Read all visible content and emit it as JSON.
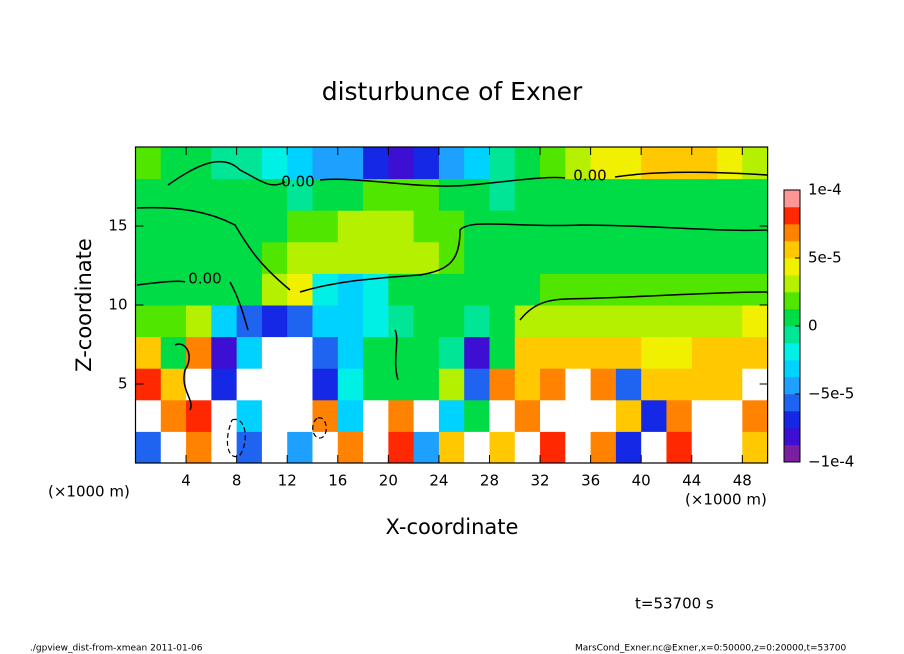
{
  "chart_data": {
    "type": "contour",
    "title": "disturbunce of Exner",
    "x_label": "X-coordinate",
    "y_label": "Z-coordinate",
    "x_unit": "(×1000 m)",
    "y_unit": "(×1000 m)",
    "time_label": "t=53700 s",
    "footer_left": "./gpview_dist-from-xmean  2011-01-06",
    "footer_right": "MarsCond_Exner.nc@Exner,x=0:50000,z=0:20000,t=53700",
    "contour_labels": [
      "0.00",
      "0.00",
      "0.00"
    ],
    "xlim": [
      0,
      50
    ],
    "ylim": [
      0,
      20
    ],
    "xticks": [
      4,
      8,
      12,
      16,
      20,
      24,
      28,
      32,
      36,
      40,
      44,
      48
    ],
    "yticks": [
      5,
      10,
      15
    ],
    "clim": [
      -0.0001,
      0.0001
    ],
    "cticks": [
      {
        "value": 0.0001,
        "label": "1e-4"
      },
      {
        "value": 5e-05,
        "label": "5e-5"
      },
      0,
      {
        "value": -5e-05,
        "label": "−5e-5"
      },
      {
        "value": -0.0001,
        "label": "−1e-4"
      }
    ],
    "colormap": [
      "#7a1fa2",
      "#3c0fd2",
      "#1428e6",
      "#1e64f0",
      "#1ea0ff",
      "#00d2ff",
      "#00f0e6",
      "#00e696",
      "#00dc46",
      "#50e600",
      "#b4f000",
      "#f0f000",
      "#ffc800",
      "#ff8200",
      "#ff2800",
      "#ff9696"
    ],
    "out_of_range_color": "#ffffff",
    "x": [
      1,
      3,
      5,
      7,
      9,
      11,
      13,
      15,
      17,
      19,
      21,
      23,
      25,
      27,
      29,
      31,
      33,
      35,
      37,
      39,
      41,
      43,
      45,
      47,
      49
    ],
    "y": [
      1,
      3,
      5,
      7,
      9,
      11,
      13,
      15,
      17,
      19
    ],
    "z": [
      [
        -6e-05,
        0.00012,
        7e-05,
        0.00012,
        -6e-05,
        0.00012,
        -5e-05,
        0.00012,
        7e-05,
        0.00012,
        8e-05,
        -4e-05,
        5e-05,
        0.00012,
        6e-05,
        0.00012,
        8e-05,
        0.00012,
        7e-05,
        -7e-05,
        0.00012,
        8e-05,
        0.00012,
        0.00012,
        6e-05
      ],
      [
        0.00012,
        7e-05,
        8e-05,
        0.00012,
        -3e-05,
        0.00012,
        0.00012,
        7e-05,
        -3e-05,
        0.00012,
        7e-05,
        0.00012,
        -3e-05,
        0,
        0.00012,
        7e-05,
        0.00012,
        0.00012,
        0.00012,
        6e-05,
        -7e-05,
        7e-05,
        0.00012,
        0.00012,
        7e-05
      ],
      [
        8e-05,
        6e-05,
        0.00012,
        -7e-05,
        0.00012,
        0.00012,
        0.00012,
        -7e-05,
        -2e-05,
        0,
        0,
        1e-05,
        3e-05,
        -6e-05,
        7e-05,
        6e-05,
        7e-05,
        0.00012,
        7e-05,
        -6e-05,
        5e-05,
        6e-05,
        6e-05,
        5e-05,
        0.00012
      ],
      [
        6e-05,
        1e-05,
        7e-05,
        -8e-05,
        -3e-05,
        0.00012,
        0.00012,
        -6e-05,
        -3e-05,
        0,
        0,
        0,
        -1e-05,
        -8e-05,
        1e-05,
        5e-05,
        6e-05,
        6e-05,
        5e-05,
        5e-05,
        4e-05,
        4e-05,
        5e-05,
        5e-05,
        6e-05
      ],
      [
        2e-05,
        2e-05,
        3e-05,
        -3e-05,
        -6e-05,
        -7e-05,
        -6e-05,
        -3e-05,
        -3e-05,
        -2e-05,
        -1e-05,
        0,
        0,
        -1e-05,
        1e-05,
        3e-05,
        3e-05,
        3e-05,
        3e-05,
        3e-05,
        3e-05,
        3e-05,
        3e-05,
        3e-05,
        4e-05
      ],
      [
        0,
        0,
        0,
        0,
        0,
        3e-05,
        4e-05,
        -2e-05,
        -3e-05,
        -2e-05,
        0,
        0,
        0,
        0,
        0,
        1e-05,
        2e-05,
        2e-05,
        2e-05,
        2e-05,
        2e-05,
        2e-05,
        2e-05,
        2e-05,
        2e-05
      ],
      [
        1e-05,
        1e-05,
        1e-05,
        1e-05,
        1e-05,
        2e-05,
        3e-05,
        3e-05,
        3e-05,
        3e-05,
        3e-05,
        3e-05,
        2e-05,
        1e-05,
        1e-05,
        1e-05,
        1e-05,
        1e-05,
        1e-05,
        1e-05,
        1e-05,
        1e-05,
        1e-05,
        1e-05,
        1e-05
      ],
      [
        0,
        0,
        0,
        0,
        1e-05,
        1e-05,
        2e-05,
        2e-05,
        3e-05,
        3e-05,
        3e-05,
        2e-05,
        2e-05,
        1e-05,
        1e-05,
        1e-05,
        1e-05,
        1e-05,
        1e-05,
        1e-05,
        1e-05,
        1e-05,
        1e-05,
        1e-05,
        1e-05
      ],
      [
        1e-05,
        1e-05,
        0,
        0,
        0,
        0,
        -1e-05,
        0,
        1e-05,
        2e-05,
        2e-05,
        2e-05,
        1e-05,
        0,
        -1e-05,
        0,
        1e-05,
        1e-05,
        1e-05,
        1e-05,
        1e-05,
        1e-05,
        1e-05,
        1e-05,
        1e-05
      ],
      [
        2e-05,
        1e-05,
        0,
        -1e-05,
        -1e-05,
        -2e-05,
        -3e-05,
        -4e-05,
        -5e-05,
        -7e-05,
        -8e-05,
        -7e-05,
        -5e-05,
        -3e-05,
        -1e-05,
        0,
        2e-05,
        3e-05,
        4e-05,
        4e-05,
        5e-05,
        5e-05,
        5e-05,
        4e-05,
        3e-05
      ]
    ]
  }
}
